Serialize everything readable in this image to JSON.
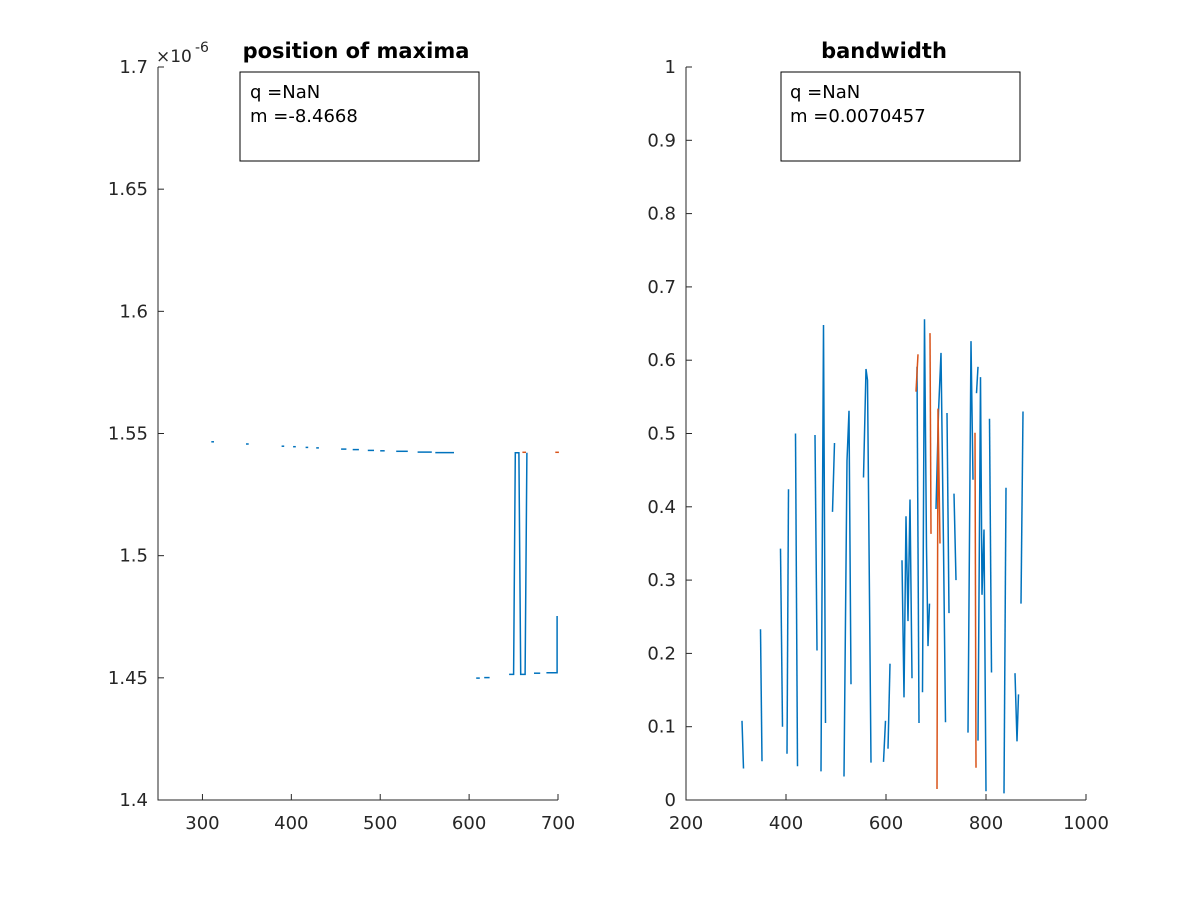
{
  "chart_data": [
    {
      "type": "line",
      "title": "position of maxima",
      "xlabel": "",
      "ylabel": "",
      "exponent_label": "×10",
      "exponent_power": "-6",
      "xlim": [
        250,
        700
      ],
      "ylim": [
        1.4,
        1.7
      ],
      "xticks": [
        "300",
        "400",
        "500",
        "600",
        "700"
      ],
      "xtick_values": [
        300,
        400,
        500,
        600,
        700
      ],
      "yticks": [
        "1.4",
        "1.45",
        "1.5",
        "1.55",
        "1.6",
        "1.65",
        "1.7"
      ],
      "ytick_values": [
        1.4,
        1.45,
        1.5,
        1.55,
        1.6,
        1.65,
        1.7
      ],
      "annotation": [
        "q =NaN",
        "m =-8.4668"
      ],
      "series": [
        {
          "color": "#0072BD",
          "segments": [
            [
              [
                310,
                1.5466
              ],
              [
                313,
                1.5466
              ]
            ],
            [
              [
                349,
                1.5457
              ],
              [
                352,
                1.5457
              ]
            ],
            [
              [
                389,
                1.5448
              ],
              [
                392,
                1.5448
              ]
            ],
            [
              [
                402,
                1.5446
              ],
              [
                405,
                1.5446
              ]
            ],
            [
              [
                416,
                1.5443
              ],
              [
                419,
                1.5443
              ]
            ],
            [
              [
                428,
                1.5441
              ],
              [
                431,
                1.5441
              ]
            ],
            [
              [
                456,
                1.5436
              ],
              [
                462,
                1.5436
              ]
            ],
            [
              [
                469,
                1.5434
              ],
              [
                476,
                1.5434
              ]
            ],
            [
              [
                486,
                1.5431
              ],
              [
                493,
                1.5431
              ]
            ],
            [
              [
                500,
                1.5429
              ],
              [
                505,
                1.5429
              ]
            ],
            [
              [
                518,
                1.5427
              ],
              [
                531,
                1.5427
              ]
            ],
            [
              [
                542,
                1.5424
              ],
              [
                558,
                1.5424
              ]
            ],
            [
              [
                562,
                1.5422
              ],
              [
                583,
                1.5422
              ]
            ],
            [
              [
                608,
                1.4499
              ],
              [
                612,
                1.4499
              ]
            ],
            [
              [
                617,
                1.4501
              ],
              [
                623,
                1.4501
              ]
            ],
            [
              [
                645,
                1.4514
              ],
              [
                650,
                1.4514
              ],
              [
                652,
                1.5421
              ],
              [
                656,
                1.5421
              ],
              [
                658,
                1.4514
              ],
              [
                663,
                1.4514
              ],
              [
                665,
                1.5421
              ]
            ],
            [
              [
                673,
                1.4519
              ],
              [
                680,
                1.4519
              ]
            ],
            [
              [
                687,
                1.4521
              ],
              [
                699,
                1.4521
              ],
              [
                699,
                1.4753
              ]
            ]
          ]
        },
        {
          "color": "#D95319",
          "segments": [
            [
              [
                660,
                1.5423
              ],
              [
                664,
                1.5423
              ]
            ],
            [
              [
                697,
                1.5423
              ],
              [
                701,
                1.5423
              ]
            ]
          ]
        }
      ]
    },
    {
      "type": "line",
      "title": "bandwidth",
      "xlabel": "",
      "ylabel": "",
      "xlim": [
        200,
        1000
      ],
      "ylim": [
        0,
        1
      ],
      "xticks": [
        "200",
        "400",
        "600",
        "800",
        "1000"
      ],
      "xtick_values": [
        200,
        400,
        600,
        800,
        1000
      ],
      "yticks": [
        "0",
        "0.1",
        "0.2",
        "0.3",
        "0.4",
        "0.5",
        "0.6",
        "0.7",
        "0.8",
        "0.9",
        "1"
      ],
      "ytick_values": [
        0,
        0.1,
        0.2,
        0.3,
        0.4,
        0.5,
        0.6,
        0.7,
        0.8,
        0.9,
        1
      ],
      "annotation": [
        "q =NaN",
        "m =0.0070457"
      ],
      "series": [
        {
          "color": "#0072BD",
          "segments": [
            [
              [
                312,
                0.108
              ],
              [
                315,
                0.043
              ]
            ],
            [
              [
                349,
                0.233
              ],
              [
                352,
                0.053
              ]
            ],
            [
              [
                389,
                0.343
              ],
              [
                393,
                0.1
              ]
            ],
            [
              [
                402,
                0.063
              ],
              [
                405,
                0.424
              ]
            ],
            [
              [
                419,
                0.5
              ],
              [
                423,
                0.046
              ]
            ],
            [
              [
                458,
                0.498
              ],
              [
                462,
                0.204
              ]
            ],
            [
              [
                470,
                0.039
              ],
              [
                475,
                0.648
              ],
              [
                479,
                0.105
              ]
            ],
            [
              [
                493,
                0.393
              ],
              [
                497,
                0.487
              ]
            ],
            [
              [
                516,
                0.032
              ],
              [
                522,
                0.463
              ],
              [
                526,
                0.531
              ],
              [
                530,
                0.158
              ]
            ],
            [
              [
                555,
                0.44
              ],
              [
                560,
                0.588
              ],
              [
                563,
                0.573
              ],
              [
                570,
                0.051
              ]
            ],
            [
              [
                595,
                0.052
              ],
              [
                599,
                0.108
              ]
            ],
            [
              [
                604,
                0.07
              ],
              [
                608,
                0.186
              ]
            ],
            [
              [
                632,
                0.327
              ],
              [
                636,
                0.14
              ],
              [
                640,
                0.387
              ],
              [
                644,
                0.244
              ],
              [
                648,
                0.41
              ],
              [
                652,
                0.166
              ]
            ],
            [
              [
                662,
                0.591
              ],
              [
                666,
                0.105
              ]
            ],
            [
              [
                673,
                0.147
              ],
              [
                677,
                0.656
              ],
              [
                681,
                0.344
              ],
              [
                684,
                0.21
              ],
              [
                687,
                0.268
              ]
            ],
            [
              [
                700,
                0.397
              ],
              [
                705,
                0.529
              ],
              [
                710,
                0.61
              ],
              [
                715,
                0.346
              ],
              [
                719,
                0.106
              ]
            ],
            [
              [
                722,
                0.528
              ],
              [
                726,
                0.255
              ]
            ],
            [
              [
                736,
                0.418
              ],
              [
                740,
                0.3
              ]
            ],
            [
              [
                764,
                0.092
              ],
              [
                770,
                0.626
              ],
              [
                774,
                0.437
              ]
            ],
            [
              [
                784,
                0.081
              ],
              [
                789,
                0.577
              ],
              [
                792,
                0.28
              ],
              [
                796,
                0.369
              ],
              [
                800,
                0.012
              ]
            ],
            [
              [
                807,
                0.52
              ],
              [
                811,
                0.174
              ]
            ],
            [
              [
                836,
                0.009
              ],
              [
                840,
                0.426
              ]
            ],
            [
              [
                858,
                0.173
              ],
              [
                862,
                0.08
              ],
              [
                865,
                0.144
              ]
            ],
            [
              [
                870,
                0.268
              ],
              [
                874,
                0.53
              ]
            ],
            [
              [
                781,
                0.555
              ],
              [
                784,
                0.591
              ]
            ]
          ]
        },
        {
          "color": "#D95319",
          "segments": [
            [
              [
                660,
                0.557
              ],
              [
                664,
                0.608
              ]
            ],
            [
              [
                688,
                0.637
              ],
              [
                690,
                0.363
              ]
            ],
            [
              [
                702,
                0.015
              ],
              [
                704,
                0.534
              ],
              [
                708,
                0.35
              ]
            ],
            [
              [
                778,
                0.501
              ],
              [
                780,
                0.044
              ]
            ]
          ]
        }
      ]
    }
  ]
}
